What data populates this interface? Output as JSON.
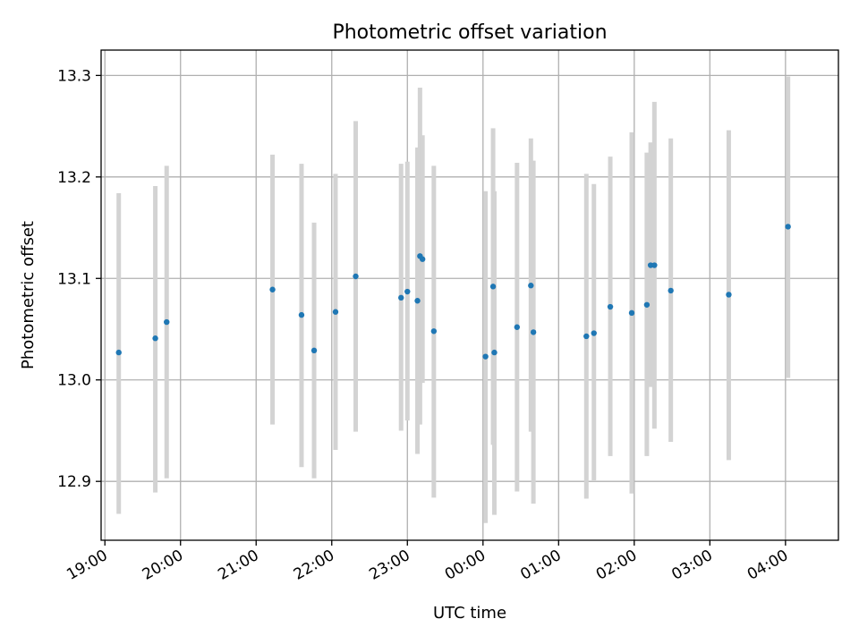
{
  "chart_data": {
    "type": "scatter",
    "title": "Photometric offset variation",
    "xlabel": "UTC time",
    "ylabel": "Photometric offset",
    "x_is_time": true,
    "x_time_reference": "relative hours from 19:00",
    "xlim": [
      -0.05,
      9.7
    ],
    "ylim": [
      12.842,
      13.325
    ],
    "xticks": [
      {
        "value": 0,
        "label": "19:00"
      },
      {
        "value": 1,
        "label": "20:00"
      },
      {
        "value": 2,
        "label": "21:00"
      },
      {
        "value": 3,
        "label": "22:00"
      },
      {
        "value": 4,
        "label": "23:00"
      },
      {
        "value": 5,
        "label": "00:00"
      },
      {
        "value": 6,
        "label": "01:00"
      },
      {
        "value": 7,
        "label": "02:00"
      },
      {
        "value": 8,
        "label": "03:00"
      },
      {
        "value": 9,
        "label": "04:00"
      }
    ],
    "yticks": [
      {
        "value": 12.9,
        "label": "12.9"
      },
      {
        "value": 13.0,
        "label": "13.0"
      },
      {
        "value": 13.1,
        "label": "13.1"
      },
      {
        "value": 13.2,
        "label": "13.2"
      },
      {
        "value": 13.3,
        "label": "13.3"
      }
    ],
    "grid": true,
    "point_color": "#1f77b4",
    "errorbar_color": "#d3d3d3",
    "points": [
      {
        "t": "19:11",
        "y": 13.027,
        "lo": 12.868,
        "hi": 13.184
      },
      {
        "t": "19:40",
        "y": 13.041,
        "lo": 12.889,
        "hi": 13.191
      },
      {
        "t": "19:49",
        "y": 13.057,
        "lo": 12.903,
        "hi": 13.211
      },
      {
        "t": "21:13",
        "y": 13.089,
        "lo": 12.956,
        "hi": 13.222
      },
      {
        "t": "21:36",
        "y": 13.064,
        "lo": 12.914,
        "hi": 13.213
      },
      {
        "t": "21:46",
        "y": 13.029,
        "lo": 12.903,
        "hi": 13.155
      },
      {
        "t": "22:03",
        "y": 13.067,
        "lo": 12.931,
        "hi": 13.203
      },
      {
        "t": "22:19",
        "y": 13.102,
        "lo": 12.949,
        "hi": 13.255
      },
      {
        "t": "22:55",
        "y": 13.081,
        "lo": 12.95,
        "hi": 13.213
      },
      {
        "t": "23:00",
        "y": 13.087,
        "lo": 12.96,
        "hi": 13.215
      },
      {
        "t": "23:08",
        "y": 13.078,
        "lo": 12.927,
        "hi": 13.229
      },
      {
        "t": "23:10",
        "y": 13.122,
        "lo": 12.956,
        "hi": 13.288
      },
      {
        "t": "23:12",
        "y": 13.119,
        "lo": 12.997,
        "hi": 13.241
      },
      {
        "t": "23:21",
        "y": 13.048,
        "lo": 12.884,
        "hi": 13.211
      },
      {
        "t": "00:02",
        "y": 13.023,
        "lo": 12.859,
        "hi": 13.186
      },
      {
        "t": "00:08",
        "y": 13.092,
        "lo": 12.936,
        "hi": 13.248
      },
      {
        "t": "00:09",
        "y": 13.027,
        "lo": 12.867,
        "hi": 13.186
      },
      {
        "t": "00:27",
        "y": 13.052,
        "lo": 12.89,
        "hi": 13.214
      },
      {
        "t": "00:38",
        "y": 13.093,
        "lo": 12.949,
        "hi": 13.238
      },
      {
        "t": "00:40",
        "y": 13.047,
        "lo": 12.878,
        "hi": 13.216
      },
      {
        "t": "01:22",
        "y": 13.043,
        "lo": 12.883,
        "hi": 13.203
      },
      {
        "t": "01:28",
        "y": 13.046,
        "lo": 12.901,
        "hi": 13.193
      },
      {
        "t": "01:41",
        "y": 13.072,
        "lo": 12.925,
        "hi": 13.22
      },
      {
        "t": "01:58",
        "y": 13.066,
        "lo": 12.888,
        "hi": 13.244
      },
      {
        "t": "02:10",
        "y": 13.074,
        "lo": 12.925,
        "hi": 13.224
      },
      {
        "t": "02:13",
        "y": 13.113,
        "lo": 12.993,
        "hi": 13.234
      },
      {
        "t": "02:16",
        "y": 13.113,
        "lo": 12.952,
        "hi": 13.274
      },
      {
        "t": "02:29",
        "y": 13.088,
        "lo": 12.939,
        "hi": 13.238
      },
      {
        "t": "03:15",
        "y": 13.084,
        "lo": 12.921,
        "hi": 13.246
      },
      {
        "t": "04:02",
        "y": 13.151,
        "lo": 13.002,
        "hi": 13.299
      }
    ]
  }
}
